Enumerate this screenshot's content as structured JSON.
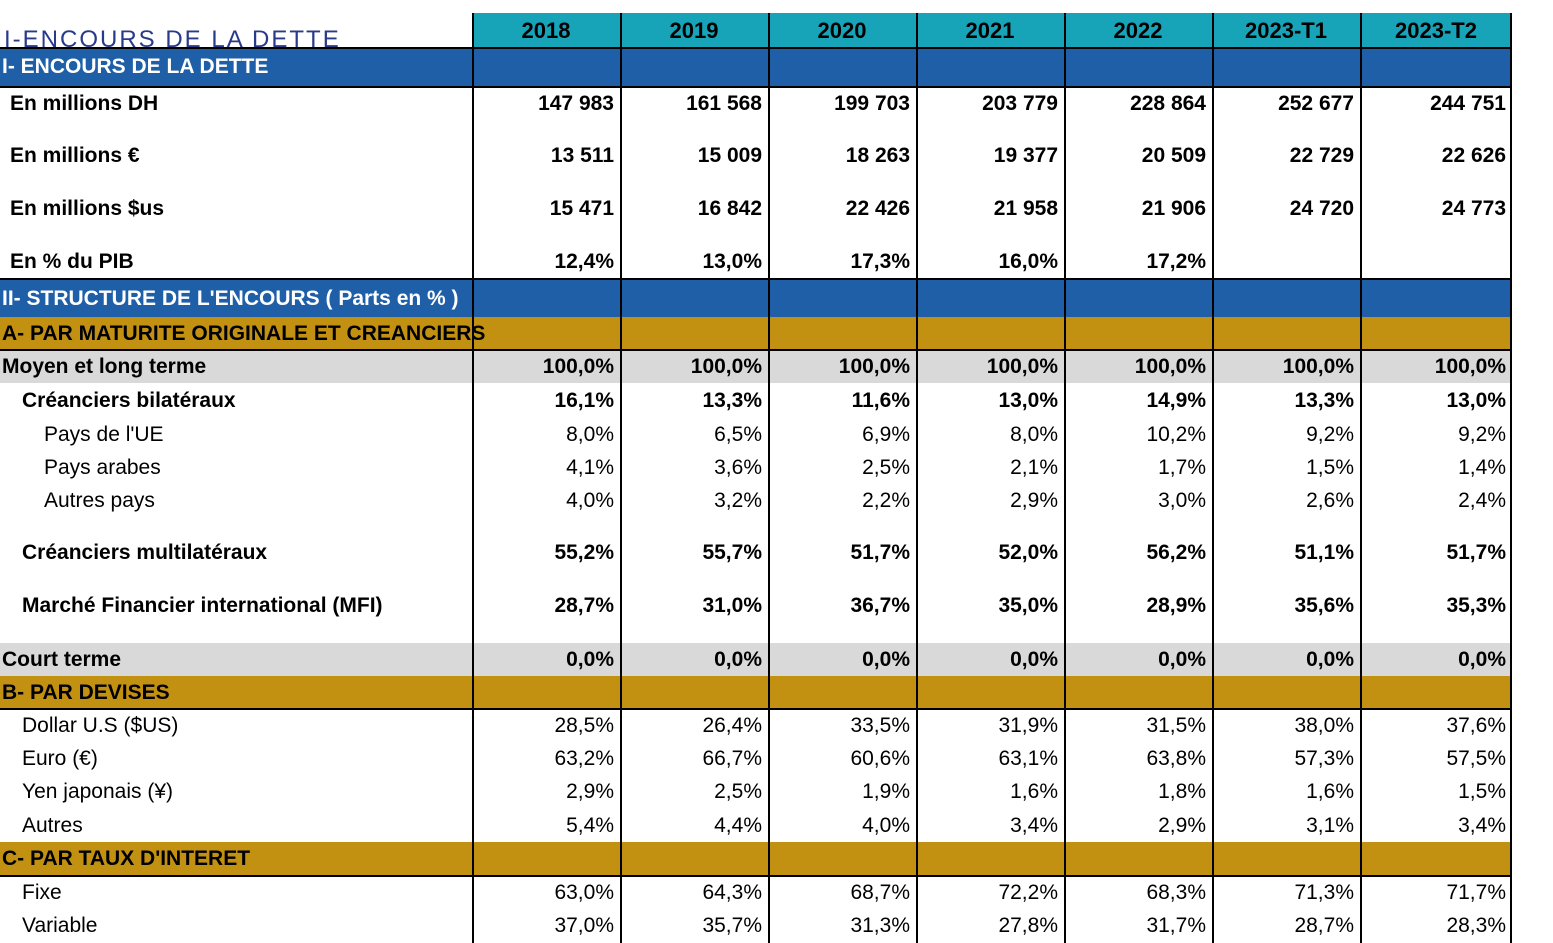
{
  "sheet_title": "I-ENCOURS DE LA DETTE",
  "years": [
    "2018",
    "2019",
    "2020",
    "2021",
    "2022",
    "2023-T1",
    "2023-T2"
  ],
  "section1": {
    "title": "I- ENCOURS DE LA DETTE",
    "rows": [
      {
        "label": "En millions DH",
        "values": [
          "147 983",
          "161 568",
          "199 703",
          "203 779",
          "228 864",
          "252 677",
          "244 751"
        ]
      },
      {
        "label": "En millions €",
        "values": [
          "13 511",
          "15 009",
          "18 263",
          "19 377",
          "20 509",
          "22 729",
          "22 626"
        ]
      },
      {
        "label": "En millions $us",
        "values": [
          "15 471",
          "16 842",
          "22 426",
          "21 958",
          "21 906",
          "24 720",
          "24 773"
        ]
      },
      {
        "label": "En % du PIB",
        "values": [
          "12,4%",
          "13,0%",
          "17,3%",
          "16,0%",
          "17,2%",
          "",
          ""
        ]
      }
    ]
  },
  "section2": {
    "title": "II- STRUCTURE DE L'ENCOURS ( Parts en % )",
    "sub_a": {
      "title": "A- PAR MATURITE ORIGINALE ET CREANCIERS",
      "rows": [
        {
          "label": "Moyen et long terme",
          "values": [
            "100,0%",
            "100,0%",
            "100,0%",
            "100,0%",
            "100,0%",
            "100,0%",
            "100,0%"
          ]
        },
        {
          "label": "Créanciers bilatéraux",
          "values": [
            "16,1%",
            "13,3%",
            "11,6%",
            "13,0%",
            "14,9%",
            "13,3%",
            "13,0%"
          ]
        },
        {
          "label": "Pays de l'UE",
          "values": [
            "8,0%",
            "6,5%",
            "6,9%",
            "8,0%",
            "10,2%",
            "9,2%",
            "9,2%"
          ]
        },
        {
          "label": "Pays arabes",
          "values": [
            "4,1%",
            "3,6%",
            "2,5%",
            "2,1%",
            "1,7%",
            "1,5%",
            "1,4%"
          ]
        },
        {
          "label": "Autres pays",
          "values": [
            "4,0%",
            "3,2%",
            "2,2%",
            "2,9%",
            "3,0%",
            "2,6%",
            "2,4%"
          ]
        },
        {
          "label": "Créanciers multilatéraux",
          "values": [
            "55,2%",
            "55,7%",
            "51,7%",
            "52,0%",
            "56,2%",
            "51,1%",
            "51,7%"
          ]
        },
        {
          "label": "Marché Financier international (MFI)",
          "values": [
            "28,7%",
            "31,0%",
            "36,7%",
            "35,0%",
            "28,9%",
            "35,6%",
            "35,3%"
          ]
        },
        {
          "label": "Court terme",
          "values": [
            "0,0%",
            "0,0%",
            "0,0%",
            "0,0%",
            "0,0%",
            "0,0%",
            "0,0%"
          ]
        }
      ]
    },
    "sub_b": {
      "title": "B- PAR DEVISES",
      "rows": [
        {
          "label": "Dollar U.S ($US)",
          "values": [
            "28,5%",
            "26,4%",
            "33,5%",
            "31,9%",
            "31,5%",
            "38,0%",
            "37,6%"
          ]
        },
        {
          "label": "Euro (€)",
          "values": [
            "63,2%",
            "66,7%",
            "60,6%",
            "63,1%",
            "63,8%",
            "57,3%",
            "57,5%"
          ]
        },
        {
          "label": "Yen japonais (¥)",
          "values": [
            "2,9%",
            "2,5%",
            "1,9%",
            "1,6%",
            "1,8%",
            "1,6%",
            "1,5%"
          ]
        },
        {
          "label": "Autres",
          "values": [
            "5,4%",
            "4,4%",
            "4,0%",
            "3,4%",
            "2,9%",
            "3,1%",
            "3,4%"
          ]
        }
      ]
    },
    "sub_c": {
      "title": "C- PAR TAUX D'INTERET",
      "rows": [
        {
          "label": "Fixe",
          "values": [
            "63,0%",
            "64,3%",
            "68,7%",
            "72,2%",
            "68,3%",
            "71,3%",
            "71,7%"
          ]
        },
        {
          "label": "Variable",
          "values": [
            "37,0%",
            "35,7%",
            "31,3%",
            "27,8%",
            "31,7%",
            "28,7%",
            "28,3%"
          ]
        }
      ]
    }
  },
  "colors": {
    "header_teal": "#17a3b8",
    "section_blue": "#1f5fa8",
    "subsection_gold": "#c39112",
    "grey_row": "#d9d9d9"
  }
}
